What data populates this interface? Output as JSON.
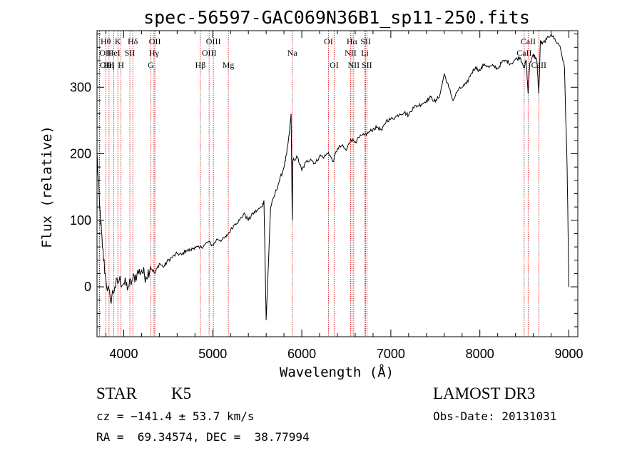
{
  "chart_data": {
    "type": "line",
    "title": "spec-56597-GAC069N36B1_sp11-250.fits",
    "xlabel": "Wavelength (Å)",
    "ylabel": "Flux (relative)",
    "xlim": [
      3700,
      9100
    ],
    "ylim": [
      -75,
      385
    ],
    "x_ticks": [
      4000,
      5000,
      6000,
      7000,
      8000,
      9000
    ],
    "y_ticks": [
      0,
      100,
      200,
      300
    ],
    "line_color": "#cc0000",
    "spectrum_color": "#000000",
    "spectrum": {
      "x": [
        3700,
        3730,
        3760,
        3800,
        3850,
        3900,
        3950,
        4000,
        4050,
        4100,
        4150,
        4200,
        4250,
        4300,
        4350,
        4400,
        4450,
        4500,
        4550,
        4600,
        4650,
        4700,
        4750,
        4800,
        4850,
        4900,
        4950,
        5000,
        5050,
        5100,
        5150,
        5200,
        5250,
        5300,
        5350,
        5400,
        5450,
        5500,
        5550,
        5575,
        5600,
        5650,
        5700,
        5750,
        5800,
        5830,
        5860,
        5880,
        5893,
        5900,
        5950,
        6000,
        6050,
        6100,
        6150,
        6200,
        6250,
        6300,
        6350,
        6400,
        6450,
        6500,
        6550,
        6600,
        6650,
        6700,
        6750,
        6800,
        6850,
        6900,
        6950,
        7000,
        7050,
        7100,
        7150,
        7200,
        7250,
        7300,
        7350,
        7400,
        7450,
        7500,
        7550,
        7600,
        7650,
        7700,
        7750,
        7800,
        7850,
        7900,
        7950,
        8000,
        8050,
        8100,
        8150,
        8200,
        8250,
        8300,
        8350,
        8400,
        8450,
        8498,
        8520,
        8542,
        8560,
        8600,
        8620,
        8640,
        8662,
        8680,
        8700,
        8750,
        8800,
        8850,
        8900,
        8950,
        8980,
        9000
      ],
      "y": [
        200,
        120,
        60,
        10,
        -20,
        0,
        10,
        5,
        0,
        10,
        20,
        25,
        15,
        30,
        20,
        35,
        30,
        40,
        45,
        50,
        48,
        55,
        55,
        60,
        58,
        62,
        68,
        62,
        72,
        70,
        75,
        85,
        95,
        100,
        110,
        100,
        110,
        115,
        120,
        130,
        -50,
        120,
        140,
        160,
        180,
        200,
        230,
        260,
        100,
        190,
        195,
        175,
        188,
        192,
        185,
        197,
        195,
        202,
        188,
        208,
        212,
        205,
        222,
        218,
        225,
        228,
        232,
        237,
        240,
        235,
        250,
        252,
        255,
        260,
        262,
        258,
        270,
        272,
        275,
        280,
        285,
        278,
        288,
        320,
        300,
        280,
        295,
        300,
        305,
        320,
        330,
        325,
        335,
        330,
        332,
        328,
        338,
        340,
        335,
        342,
        345,
        330,
        340,
        290,
        335,
        350,
        345,
        340,
        290,
        370,
        365,
        372,
        380,
        370,
        362,
        330,
        180,
        0
      ]
    },
    "lines": [
      {
        "label": "Hθ",
        "x": 3798,
        "row": 1,
        "ha": "middle"
      },
      {
        "label": "OII",
        "x": 3727,
        "row": 2,
        "ha": "start"
      },
      {
        "label": "OIII",
        "x": 3730,
        "row": 3,
        "ha": "start"
      },
      {
        "label": "K",
        "x": 3934,
        "row": 1,
        "ha": "middle"
      },
      {
        "label": "HeI",
        "x": 3889,
        "row": 2,
        "ha": "middle"
      },
      {
        "label": "Hη",
        "x": 3835,
        "row": 3,
        "ha": "middle"
      },
      {
        "label": "H",
        "x": 3969,
        "row": 3,
        "ha": "middle"
      },
      {
        "label": "Hδ",
        "x": 4102,
        "row": 1,
        "ha": "middle"
      },
      {
        "label": "SII",
        "x": 4069,
        "row": 2,
        "ha": "middle"
      },
      {
        "label": "OII",
        "x": 4350,
        "row": 1,
        "ha": "middle"
      },
      {
        "label": "Hγ",
        "x": 4340,
        "row": 2,
        "ha": "middle"
      },
      {
        "label": "G",
        "x": 4304,
        "row": 3,
        "ha": "middle"
      },
      {
        "label": "OIII",
        "x": 5007,
        "row": 1,
        "ha": "middle"
      },
      {
        "label": "OIII",
        "x": 4959,
        "row": 2,
        "ha": "middle"
      },
      {
        "label": "Hβ",
        "x": 4861,
        "row": 3,
        "ha": "middle"
      },
      {
        "label": "Mg",
        "x": 5175,
        "row": 3,
        "ha": "middle"
      },
      {
        "label": "Na",
        "x": 5893,
        "row": 2,
        "ha": "middle"
      },
      {
        "label": "OI",
        "x": 6300,
        "row": 1,
        "ha": "middle"
      },
      {
        "label": "OI",
        "x": 6363,
        "row": 3,
        "ha": "middle"
      },
      {
        "label": "Hα",
        "x": 6563,
        "row": 1,
        "ha": "middle"
      },
      {
        "label": "NII",
        "x": 6548,
        "row": 2,
        "ha": "middle"
      },
      {
        "label": "NII",
        "x": 6583,
        "row": 3,
        "ha": "middle"
      },
      {
        "label": "SII",
        "x": 6717,
        "row": 1,
        "ha": "middle"
      },
      {
        "label": "Li",
        "x": 6708,
        "row": 2,
        "ha": "middle"
      },
      {
        "label": "SII",
        "x": 6731,
        "row": 3,
        "ha": "middle"
      },
      {
        "label": "CaII",
        "x": 8542,
        "row": 1,
        "ha": "middle"
      },
      {
        "label": "CaII",
        "x": 8498,
        "row": 2,
        "ha": "middle"
      },
      {
        "label": "CaII",
        "x": 8662,
        "row": 3,
        "ha": "middle"
      }
    ]
  },
  "info": {
    "class_label": "STAR",
    "subclass": "K5",
    "survey": "LAMOST DR3",
    "cz_text": "cz = −141.4 ± 53.7 km/s",
    "obs_date_text": "Obs-Date: 20131031",
    "coords_text": "RA =  69.34574, DEC =  38.77994"
  }
}
